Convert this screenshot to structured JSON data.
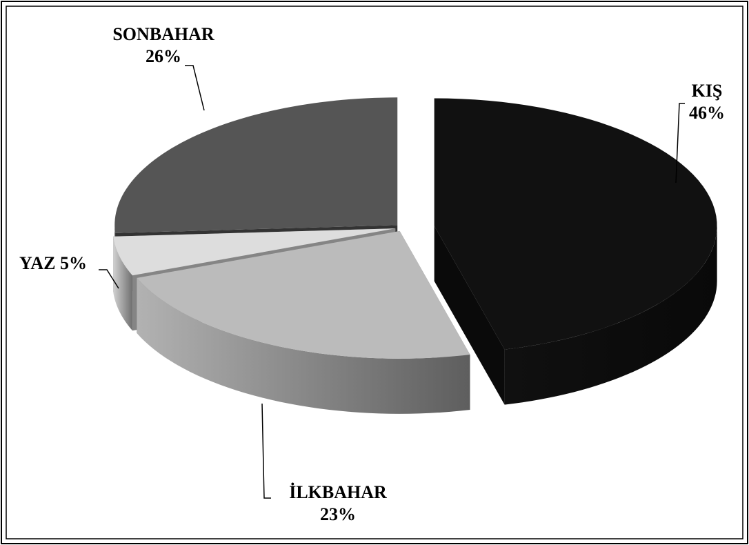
{
  "chart_data": {
    "type": "pie3d",
    "categories": [
      "KIŞ",
      "İLKBAHAR",
      "YAZ",
      "SONBAHAR"
    ],
    "values": [
      46,
      23,
      5,
      26
    ],
    "value_labels": [
      "46%",
      "23%",
      "5%",
      "26%"
    ],
    "colors": [
      "#111111",
      "#bbbbbb",
      "#dddddd",
      "#555555"
    ]
  }
}
